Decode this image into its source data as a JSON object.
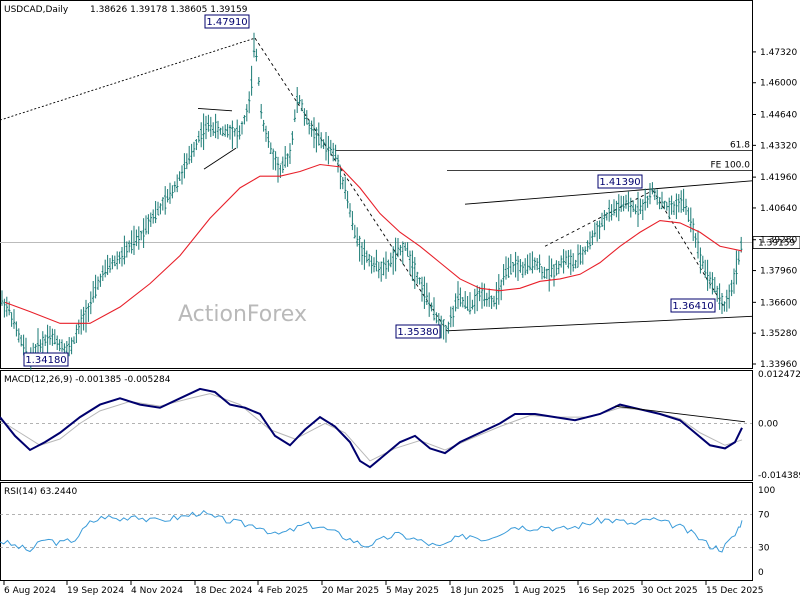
{
  "colors": {
    "bars": "#1a7a74",
    "ma": "#e8202a",
    "trendline": "#000000",
    "macd_line": "#00006e",
    "macd_signal": "#b8b8b8",
    "rsi_line": "#3a9bd9",
    "label_border": "#00006e",
    "grid": "#999999",
    "watermark": "#b9b9b9"
  },
  "header": {
    "symbol": "USDCAD,Daily",
    "ohlc": "1.38626 1.39178 1.38605 1.39159"
  },
  "watermark": "ActionForex",
  "chart_data": [
    {
      "type": "bar",
      "panel": "price",
      "ylim": [
        1.3396,
        1.486
      ],
      "y_ticks": [
        "1.47320",
        "1.46000",
        "1.44640",
        "1.43320",
        "1.41960",
        "1.40640",
        "1.39280",
        "1.37960",
        "1.36600",
        "1.35280",
        "1.33960"
      ],
      "last_price": "1.39159",
      "ma_label": "",
      "levels": [
        {
          "label": "61.8",
          "value": 1.431
        },
        {
          "label": "FE 100.0",
          "value": 1.4225
        }
      ],
      "callouts": [
        {
          "text": "1.47910",
          "value": 1.4791
        },
        {
          "text": "1.34180",
          "value": 1.3418
        },
        {
          "text": "1.35380",
          "value": 1.3538
        },
        {
          "text": "1.41390",
          "value": 1.4139
        },
        {
          "text": "1.36410",
          "value": 1.3641
        }
      ],
      "x_ticks": [
        "6 Aug 2024",
        "19 Sep 2024",
        "4 Nov 2024",
        "18 Dec 2024",
        "4 Feb 2025",
        "20 Mar 2025",
        "5 May 2025",
        "18 Jun 2025",
        "1 Aug 2025",
        "16 Sep 2025",
        "30 Oct 2025",
        "15 Dec 2025"
      ],
      "price_path": [
        [
          0,
          1.368
        ],
        [
          10,
          1.362
        ],
        [
          20,
          1.35
        ],
        [
          30,
          1.3418
        ],
        [
          40,
          1.348
        ],
        [
          50,
          1.352
        ],
        [
          60,
          1.348
        ],
        [
          70,
          1.346
        ],
        [
          80,
          1.356
        ],
        [
          90,
          1.365
        ],
        [
          100,
          1.376
        ],
        [
          110,
          1.382
        ],
        [
          120,
          1.385
        ],
        [
          130,
          1.39
        ],
        [
          140,
          1.394
        ],
        [
          150,
          1.402
        ],
        [
          160,
          1.406
        ],
        [
          170,
          1.412
        ],
        [
          180,
          1.42
        ],
        [
          190,
          1.428
        ],
        [
          200,
          1.438
        ],
        [
          210,
          1.442
        ],
        [
          220,
          1.439
        ],
        [
          230,
          1.44
        ],
        [
          240,
          1.438
        ],
        [
          250,
          1.452
        ],
        [
          255,
          1.4791
        ],
        [
          262,
          1.445
        ],
        [
          270,
          1.432
        ],
        [
          280,
          1.422
        ],
        [
          290,
          1.43
        ],
        [
          298,
          1.455
        ],
        [
          305,
          1.445
        ],
        [
          315,
          1.438
        ],
        [
          325,
          1.433
        ],
        [
          335,
          1.43
        ],
        [
          345,
          1.415
        ],
        [
          355,
          1.395
        ],
        [
          365,
          1.386
        ],
        [
          375,
          1.382
        ],
        [
          385,
          1.38
        ],
        [
          395,
          1.386
        ],
        [
          405,
          1.39
        ],
        [
          415,
          1.38
        ],
        [
          425,
          1.37
        ],
        [
          435,
          1.36
        ],
        [
          447,
          1.3538
        ],
        [
          458,
          1.368
        ],
        [
          470,
          1.364
        ],
        [
          482,
          1.37
        ],
        [
          495,
          1.366
        ],
        [
          505,
          1.378
        ],
        [
          515,
          1.382
        ],
        [
          525,
          1.38
        ],
        [
          535,
          1.384
        ],
        [
          545,
          1.378
        ],
        [
          555,
          1.38
        ],
        [
          565,
          1.385
        ],
        [
          575,
          1.382
        ],
        [
          585,
          1.388
        ],
        [
          595,
          1.396
        ],
        [
          605,
          1.402
        ],
        [
          615,
          1.406
        ],
        [
          625,
          1.408
        ],
        [
          635,
          1.406
        ],
        [
          645,
          1.408
        ],
        [
          653,
          1.4139
        ],
        [
          662,
          1.408
        ],
        [
          672,
          1.406
        ],
        [
          682,
          1.41
        ],
        [
          692,
          1.4
        ],
        [
          700,
          1.386
        ],
        [
          710,
          1.376
        ],
        [
          718,
          1.37
        ],
        [
          724,
          1.3641
        ],
        [
          732,
          1.372
        ],
        [
          740,
          1.388
        ],
        [
          742,
          1.3916
        ]
      ],
      "ma_path": [
        [
          5,
          1.366
        ],
        [
          30,
          1.362
        ],
        [
          60,
          1.357
        ],
        [
          90,
          1.357
        ],
        [
          120,
          1.364
        ],
        [
          150,
          1.374
        ],
        [
          180,
          1.386
        ],
        [
          210,
          1.402
        ],
        [
          240,
          1.415
        ],
        [
          260,
          1.42
        ],
        [
          280,
          1.42
        ],
        [
          300,
          1.422
        ],
        [
          320,
          1.425
        ],
        [
          340,
          1.424
        ],
        [
          360,
          1.415
        ],
        [
          380,
          1.404
        ],
        [
          400,
          1.396
        ],
        [
          420,
          1.39
        ],
        [
          440,
          1.383
        ],
        [
          460,
          1.376
        ],
        [
          480,
          1.372
        ],
        [
          500,
          1.371
        ],
        [
          520,
          1.372
        ],
        [
          540,
          1.375
        ],
        [
          560,
          1.376
        ],
        [
          580,
          1.378
        ],
        [
          600,
          1.383
        ],
        [
          620,
          1.39
        ],
        [
          640,
          1.396
        ],
        [
          660,
          1.401
        ],
        [
          680,
          1.4
        ],
        [
          700,
          1.396
        ],
        [
          720,
          1.39
        ],
        [
          742,
          1.388
        ]
      ]
    },
    {
      "type": "line",
      "panel": "macd",
      "title": "MACD(12,26,9) -0.001385 -0.005284",
      "y_ticks": [
        "0.012472",
        "0.00",
        "-0.014389"
      ],
      "ylim": [
        -0.0165,
        0.0145
      ],
      "macd_line": [
        [
          0,
          0.002
        ],
        [
          15,
          -0.004
        ],
        [
          30,
          -0.0085
        ],
        [
          45,
          -0.006
        ],
        [
          60,
          -0.003
        ],
        [
          80,
          0.002
        ],
        [
          100,
          0.006
        ],
        [
          120,
          0.008
        ],
        [
          140,
          0.006
        ],
        [
          160,
          0.005
        ],
        [
          180,
          0.008
        ],
        [
          200,
          0.011
        ],
        [
          215,
          0.01
        ],
        [
          230,
          0.006
        ],
        [
          245,
          0.005
        ],
        [
          260,
          0.003
        ],
        [
          275,
          -0.004
        ],
        [
          290,
          -0.007
        ],
        [
          305,
          -0.002
        ],
        [
          320,
          0.002
        ],
        [
          335,
          -0.001
        ],
        [
          350,
          -0.006
        ],
        [
          360,
          -0.012
        ],
        [
          370,
          -0.014
        ],
        [
          385,
          -0.01
        ],
        [
          400,
          -0.006
        ],
        [
          415,
          -0.004
        ],
        [
          430,
          -0.008
        ],
        [
          445,
          -0.0095
        ],
        [
          460,
          -0.006
        ],
        [
          480,
          -0.003
        ],
        [
          500,
          0.0
        ],
        [
          515,
          0.003
        ],
        [
          535,
          0.003
        ],
        [
          555,
          0.002
        ],
        [
          575,
          0.001
        ],
        [
          600,
          0.003
        ],
        [
          620,
          0.006
        ],
        [
          640,
          0.0045
        ],
        [
          660,
          0.003
        ],
        [
          680,
          0.001
        ],
        [
          695,
          -0.003
        ],
        [
          710,
          -0.007
        ],
        [
          725,
          -0.008
        ],
        [
          735,
          -0.006
        ],
        [
          742,
          -0.0014
        ]
      ],
      "signal_line": [
        [
          0,
          0.001
        ],
        [
          20,
          -0.003
        ],
        [
          40,
          -0.007
        ],
        [
          60,
          -0.005
        ],
        [
          80,
          0.0
        ],
        [
          100,
          0.004
        ],
        [
          130,
          0.007
        ],
        [
          160,
          0.0055
        ],
        [
          190,
          0.008
        ],
        [
          210,
          0.0095
        ],
        [
          240,
          0.006
        ],
        [
          270,
          -0.002
        ],
        [
          295,
          -0.005
        ],
        [
          325,
          0.0
        ],
        [
          345,
          -0.003
        ],
        [
          370,
          -0.012
        ],
        [
          395,
          -0.008
        ],
        [
          420,
          -0.0055
        ],
        [
          445,
          -0.0085
        ],
        [
          470,
          -0.005
        ],
        [
          500,
          -0.001
        ],
        [
          530,
          0.0025
        ],
        [
          560,
          0.002
        ],
        [
          590,
          0.002
        ],
        [
          620,
          0.005
        ],
        [
          650,
          0.004
        ],
        [
          680,
          0.0015
        ],
        [
          700,
          -0.003
        ],
        [
          725,
          -0.007
        ],
        [
          742,
          -0.0053
        ]
      ],
      "trend": [
        [
          615,
          0.0055
        ],
        [
          745,
          0.0005
        ]
      ]
    },
    {
      "type": "line",
      "panel": "rsi",
      "title": "RSI(14) 63.2440",
      "y_ticks": [
        "100",
        "70",
        "30",
        "0"
      ],
      "ylim": [
        0,
        100
      ],
      "rsi_line": [
        [
          0,
          38
        ],
        [
          15,
          32
        ],
        [
          30,
          26
        ],
        [
          45,
          40
        ],
        [
          60,
          35
        ],
        [
          75,
          40
        ],
        [
          90,
          60
        ],
        [
          105,
          68
        ],
        [
          120,
          64
        ],
        [
          135,
          70
        ],
        [
          150,
          62
        ],
        [
          170,
          65
        ],
        [
          185,
          68
        ],
        [
          200,
          73
        ],
        [
          215,
          66
        ],
        [
          230,
          62
        ],
        [
          245,
          58
        ],
        [
          260,
          56
        ],
        [
          275,
          45
        ],
        [
          290,
          50
        ],
        [
          305,
          58
        ],
        [
          320,
          55
        ],
        [
          335,
          48
        ],
        [
          350,
          40
        ],
        [
          365,
          32
        ],
        [
          380,
          38
        ],
        [
          395,
          46
        ],
        [
          410,
          42
        ],
        [
          425,
          36
        ],
        [
          440,
          30
        ],
        [
          455,
          40
        ],
        [
          470,
          45
        ],
        [
          485,
          40
        ],
        [
          500,
          48
        ],
        [
          515,
          56
        ],
        [
          530,
          54
        ],
        [
          545,
          56
        ],
        [
          560,
          52
        ],
        [
          575,
          55
        ],
        [
          590,
          60
        ],
        [
          605,
          64
        ],
        [
          620,
          62
        ],
        [
          635,
          58
        ],
        [
          650,
          65
        ],
        [
          665,
          60
        ],
        [
          680,
          55
        ],
        [
          695,
          45
        ],
        [
          710,
          32
        ],
        [
          722,
          28
        ],
        [
          735,
          45
        ],
        [
          742,
          63
        ]
      ]
    }
  ]
}
